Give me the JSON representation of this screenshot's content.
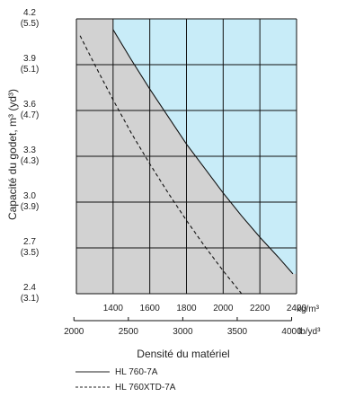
{
  "chart_data": {
    "type": "line",
    "ylabel": "Capacité du godet, m³ (yd³)",
    "xlabel": "Densité du matériel",
    "x_unit_primary": "kg/m³",
    "x_unit_secondary": "lb/yd³",
    "xlim": [
      1200,
      2400
    ],
    "ylim": [
      2.4,
      4.2
    ],
    "grid": true,
    "x_ticks_primary": [
      "1400",
      "1600",
      "1800",
      "2000",
      "2200",
      "2400"
    ],
    "x_ticks_secondary": [
      "2000",
      "2500",
      "3000",
      "3500",
      "4000"
    ],
    "y_ticks": [
      {
        "value": 4.2,
        "label": "4.2",
        "sub": "(5.5)"
      },
      {
        "value": 3.9,
        "label": "3.9",
        "sub": "(5.1)"
      },
      {
        "value": 3.6,
        "label": "3.6",
        "sub": "(4.7)"
      },
      {
        "value": 3.3,
        "label": "3.3",
        "sub": "(4.3)"
      },
      {
        "value": 3.0,
        "label": "3.0",
        "sub": "(3.9)"
      },
      {
        "value": 2.7,
        "label": "2.7",
        "sub": "(3.5)"
      },
      {
        "value": 2.4,
        "label": "2.4",
        "sub": "(3.1)"
      }
    ],
    "colors": {
      "region_above": "#c8ecf8",
      "region_below": "#d2d2d2",
      "grid": "#111111"
    },
    "series": [
      {
        "name": "HL 760-7A",
        "style": "solid",
        "x": [
          1400,
          1500,
          1600,
          1700,
          1800,
          1900,
          2000,
          2100,
          2200,
          2300,
          2380
        ],
        "y": [
          4.13,
          3.93,
          3.74,
          3.56,
          3.38,
          3.22,
          3.06,
          2.91,
          2.77,
          2.64,
          2.53
        ]
      },
      {
        "name": "HL 760XTD-7A",
        "style": "dashed",
        "x": [
          1220,
          1300,
          1400,
          1500,
          1600,
          1700,
          1800,
          1900,
          2000,
          2100
        ],
        "y": [
          4.09,
          3.9,
          3.67,
          3.45,
          3.25,
          3.06,
          2.88,
          2.71,
          2.55,
          2.4
        ]
      }
    ]
  }
}
